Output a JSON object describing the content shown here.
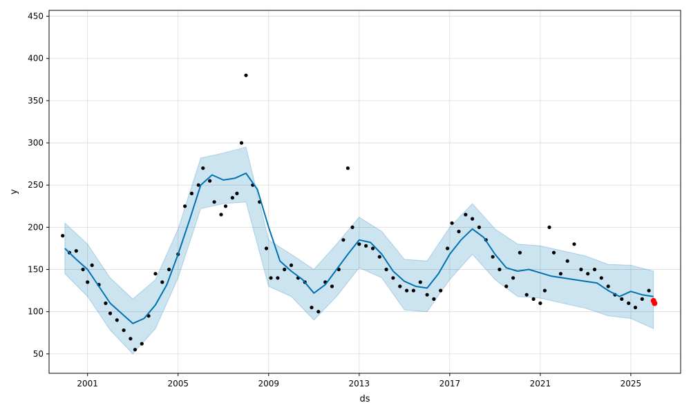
{
  "chart_data": {
    "type": "line",
    "xlabel": "ds",
    "ylabel": "y",
    "xlim": [
      1999.3,
      2027.2
    ],
    "ylim": [
      27,
      457
    ],
    "x_ticks": [
      2001,
      2005,
      2009,
      2013,
      2017,
      2021,
      2025
    ],
    "x_tick_labels": [
      "2001",
      "2005",
      "2009",
      "2013",
      "2017",
      "2021",
      "2025"
    ],
    "y_ticks": [
      50,
      100,
      150,
      200,
      250,
      300,
      350,
      400,
      450
    ],
    "y_tick_labels": [
      "50",
      "100",
      "150",
      "200",
      "250",
      "300",
      "350",
      "400",
      "450"
    ],
    "grid": true,
    "colors": {
      "forecast_line": "#0072B2",
      "uncertainty_band": "#0072B2",
      "observed_points": "#000000",
      "highlight_point": "#ff0000"
    },
    "series": [
      {
        "role": "forecast",
        "x": [
          2000.0,
          2000.5,
          2001.0,
          2001.5,
          2002.0,
          2002.5,
          2003.0,
          2003.5,
          2004.0,
          2004.5,
          2005.0,
          2005.5,
          2006.0,
          2006.5,
          2007.0,
          2007.5,
          2008.0,
          2008.5,
          2009.0,
          2009.5,
          2010.0,
          2010.5,
          2011.0,
          2011.5,
          2012.0,
          2012.5,
          2013.0,
          2013.5,
          2014.0,
          2014.5,
          2015.0,
          2015.5,
          2016.0,
          2016.5,
          2017.0,
          2017.5,
          2018.0,
          2018.5,
          2019.0,
          2019.5,
          2020.0,
          2020.5,
          2021.0,
          2021.5,
          2022.0,
          2022.5,
          2023.0,
          2023.5,
          2024.0,
          2024.5,
          2025.0,
          2025.5,
          2026.0
        ],
        "y": [
          175,
          162,
          150,
          130,
          110,
          98,
          86,
          92,
          108,
          132,
          168,
          208,
          250,
          262,
          256,
          258,
          264,
          245,
          200,
          160,
          148,
          138,
          122,
          132,
          150,
          168,
          185,
          182,
          168,
          148,
          136,
          130,
          128,
          145,
          168,
          185,
          198,
          188,
          168,
          152,
          148,
          150,
          146,
          142,
          140,
          138,
          136,
          134,
          125,
          118,
          124,
          120,
          118
        ]
      },
      {
        "role": "uncertainty-upper",
        "x": [
          2000.0,
          2001.0,
          2002.0,
          2003.0,
          2004.0,
          2005.0,
          2006.0,
          2007.0,
          2008.0,
          2009.0,
          2010.0,
          2011.0,
          2012.0,
          2013.0,
          2014.0,
          2015.0,
          2016.0,
          2017.0,
          2018.0,
          2019.0,
          2020.0,
          2021.0,
          2022.0,
          2023.0,
          2024.0,
          2025.0,
          2026.0
        ],
        "y": [
          205,
          180,
          140,
          115,
          138,
          198,
          282,
          288,
          295,
          185,
          168,
          150,
          180,
          212,
          195,
          162,
          160,
          200,
          228,
          198,
          180,
          178,
          172,
          166,
          156,
          155,
          148
        ]
      },
      {
        "role": "uncertainty-lower",
        "x": [
          2000.0,
          2001.0,
          2002.0,
          2003.0,
          2004.0,
          2005.0,
          2006.0,
          2007.0,
          2008.0,
          2009.0,
          2010.0,
          2011.0,
          2012.0,
          2013.0,
          2014.0,
          2015.0,
          2016.0,
          2017.0,
          2018.0,
          2019.0,
          2020.0,
          2021.0,
          2022.0,
          2023.0,
          2024.0,
          2025.0,
          2026.0
        ],
        "y": [
          145,
          118,
          78,
          50,
          80,
          140,
          222,
          228,
          230,
          130,
          118,
          90,
          118,
          152,
          140,
          102,
          100,
          138,
          168,
          138,
          118,
          116,
          110,
          104,
          95,
          92,
          80
        ]
      },
      {
        "role": "observed",
        "x": [
          1999.9,
          2000.2,
          2000.5,
          2000.8,
          2001.0,
          2001.2,
          2001.5,
          2001.8,
          2002.0,
          2002.3,
          2002.6,
          2002.9,
          2003.1,
          2003.4,
          2003.7,
          2004.0,
          2004.3,
          2004.6,
          2005.0,
          2005.3,
          2005.6,
          2005.9,
          2006.1,
          2006.4,
          2006.6,
          2006.9,
          2007.1,
          2007.4,
          2007.6,
          2007.8,
          2008.0,
          2008.3,
          2008.6,
          2008.9,
          2009.1,
          2009.4,
          2009.7,
          2010.0,
          2010.3,
          2010.6,
          2010.9,
          2011.2,
          2011.5,
          2011.8,
          2012.1,
          2012.3,
          2012.5,
          2012.7,
          2013.0,
          2013.3,
          2013.6,
          2013.9,
          2014.2,
          2014.5,
          2014.8,
          2015.1,
          2015.4,
          2015.7,
          2016.0,
          2016.3,
          2016.6,
          2016.9,
          2017.1,
          2017.4,
          2017.7,
          2018.0,
          2018.3,
          2018.6,
          2018.9,
          2019.2,
          2019.5,
          2019.8,
          2020.1,
          2020.4,
          2020.7,
          2021.0,
          2021.2,
          2021.4,
          2021.6,
          2021.9,
          2022.2,
          2022.5,
          2022.8,
          2023.1,
          2023.4,
          2023.7,
          2024.0,
          2024.3,
          2024.6,
          2024.9,
          2025.2,
          2025.5,
          2025.8
        ],
        "y": [
          190,
          170,
          172,
          150,
          135,
          155,
          132,
          110,
          98,
          90,
          78,
          68,
          55,
          62,
          95,
          145,
          135,
          150,
          168,
          225,
          240,
          250,
          270,
          255,
          230,
          215,
          225,
          235,
          240,
          300,
          380,
          250,
          230,
          175,
          140,
          140,
          150,
          155,
          140,
          135,
          105,
          100,
          135,
          130,
          150,
          185,
          270,
          200,
          180,
          178,
          175,
          165,
          150,
          140,
          130,
          125,
          125,
          135,
          120,
          115,
          125,
          175,
          205,
          195,
          215,
          210,
          200,
          185,
          165,
          150,
          130,
          140,
          170,
          120,
          115,
          110,
          125,
          200,
          170,
          145,
          160,
          180,
          150,
          145,
          150,
          140,
          130,
          120,
          115,
          110,
          105,
          115,
          125
        ]
      }
    ],
    "highlight_points": [
      {
        "x": 2026.0,
        "y": 113
      },
      {
        "x": 2026.05,
        "y": 110
      }
    ]
  }
}
